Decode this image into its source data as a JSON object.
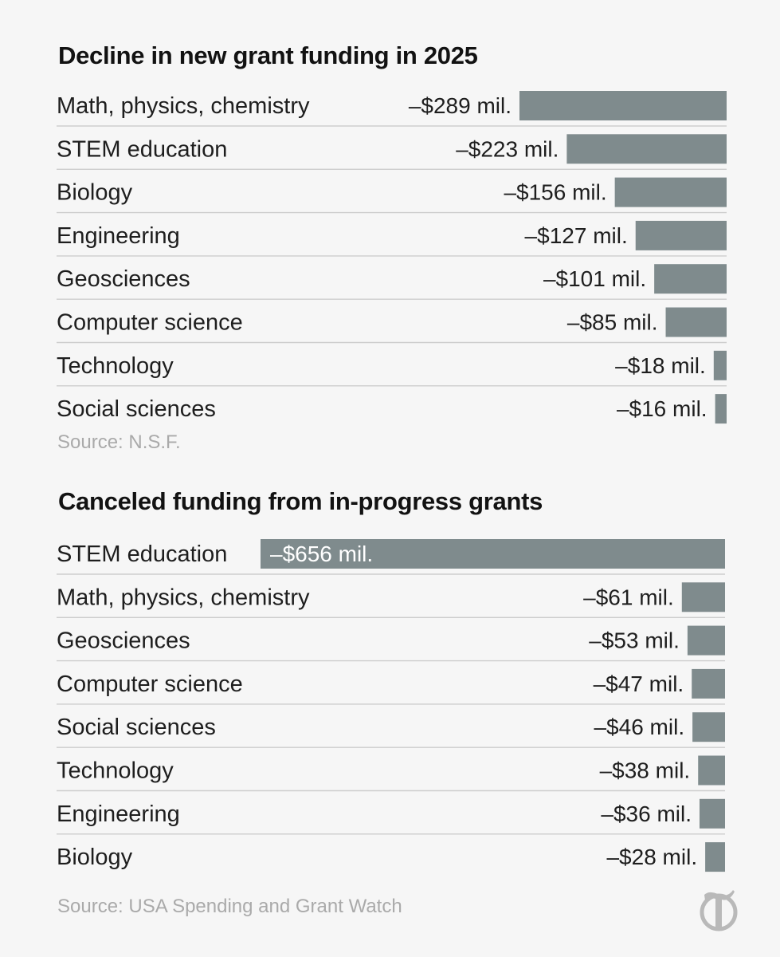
{
  "chart_data": [
    {
      "type": "bar",
      "orientation": "horizontal",
      "title": "Decline in new grant funding in 2025",
      "categories": [
        "Math, physics, chemistry",
        "STEM education",
        "Biology",
        "Engineering",
        "Geosciences",
        "Computer science",
        "Technology",
        "Social sciences"
      ],
      "values": [
        -289,
        -223,
        -156,
        -127,
        -101,
        -85,
        -18,
        -16
      ],
      "labels": [
        "–$289 mil.",
        "–$223 mil.",
        "–$156 mil.",
        "–$127 mil.",
        "–$101 mil.",
        "–$85 mil.",
        "–$18 mil.",
        "–$16 mil."
      ],
      "source": "Source: N.S.F.",
      "bar_color": "#7f8b8d"
    },
    {
      "type": "bar",
      "orientation": "horizontal",
      "title": "Canceled funding from in-progress grants",
      "categories": [
        "STEM education",
        "Math, physics, chemistry",
        "Geosciences",
        "Computer science",
        "Social sciences",
        "Technology",
        "Engineering",
        "Biology"
      ],
      "values": [
        -656,
        -61,
        -53,
        -47,
        -46,
        -38,
        -36,
        -28
      ],
      "labels": [
        "–$656 mil.",
        "–$61 mil.",
        "–$53 mil.",
        "–$47 mil.",
        "–$46 mil.",
        "–$38 mil.",
        "–$36 mil.",
        "–$28 mil."
      ],
      "source": "Source: USA Spending and Grant Watch",
      "bar_color": "#7f8b8d"
    }
  ],
  "branding": {
    "logo_icon": "nyt-t-logo-icon"
  }
}
